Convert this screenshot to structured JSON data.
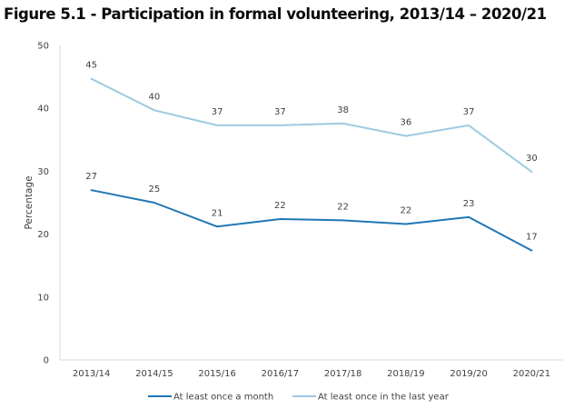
{
  "title": "Figure 5.1 - Participation in formal volunteering, 2013/14 – 2020/21",
  "chart_data": {
    "type": "line",
    "title": "Figure 5.1 - Participation in formal volunteering, 2013/14 – 2020/21",
    "xlabel": "",
    "ylabel": "Percentage",
    "ylim": [
      0,
      50
    ],
    "yticks": [
      0,
      10,
      20,
      30,
      40,
      50
    ],
    "grid": false,
    "legend_position": "bottom",
    "categories": [
      "2013/14",
      "2014/15",
      "2015/16",
      "2016/17",
      "2017/18",
      "2018/19",
      "2019/20",
      "2020/21"
    ],
    "series": [
      {
        "name": "At least once a month",
        "color": "#1f77b4",
        "values": [
          27,
          25,
          21.2,
          22.4,
          22.2,
          21.6,
          22.7,
          17.4
        ],
        "labels": [
          "27",
          "25",
          "21",
          "22",
          "22",
          "22",
          "23",
          "17"
        ]
      },
      {
        "name": "At least once in the last year",
        "color": "#9ecae1",
        "values": [
          44.7,
          39.7,
          37.3,
          37.3,
          37.6,
          35.6,
          37.3,
          29.9
        ],
        "labels": [
          "45",
          "40",
          "37",
          "37",
          "38",
          "36",
          "37",
          "30"
        ]
      }
    ]
  }
}
